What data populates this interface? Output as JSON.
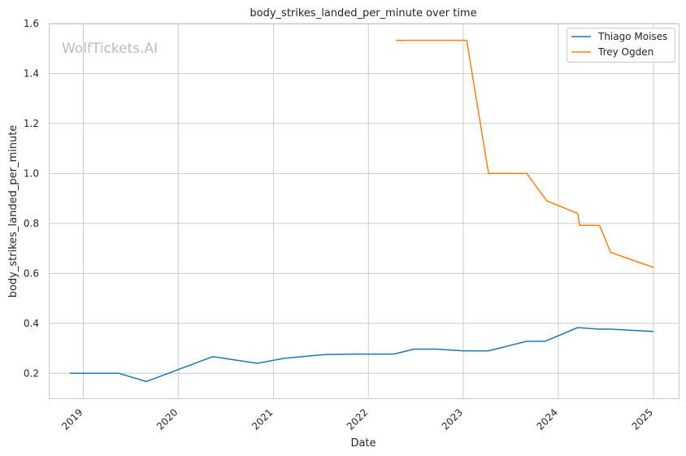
{
  "chart_data": {
    "type": "line",
    "title": "body_strikes_landed_per_minute over time",
    "xlabel": "Date",
    "ylabel": "body_strikes_landed_per_minute",
    "watermark": "WolfTickets.AI",
    "ylim": [
      0.1,
      1.6
    ],
    "xlim": [
      "2018-08-21",
      "2025-04-08"
    ],
    "y_ticks": [
      0.2,
      0.4,
      0.6,
      0.8,
      1.0,
      1.2,
      1.4,
      1.6
    ],
    "y_tick_labels": [
      "0.2",
      "0.4",
      "0.6",
      "0.8",
      "1.0",
      "1.2",
      "1.4",
      "1.6"
    ],
    "x_ticks": [
      "2019-01-01",
      "2020-01-01",
      "2021-01-01",
      "2022-01-01",
      "2023-01-01",
      "2024-01-01",
      "2025-01-01"
    ],
    "x_tick_labels": [
      "2019",
      "2020",
      "2021",
      "2022",
      "2023",
      "2024",
      "2025"
    ],
    "grid": true,
    "legend_position": "top-right",
    "series": [
      {
        "name": "Thiago Moises",
        "color": "#1f77b4",
        "points": [
          [
            "2018-11-10",
            0.2
          ],
          [
            "2019-05-18",
            0.2
          ],
          [
            "2019-08-31",
            0.167
          ],
          [
            "2020-05-13",
            0.267
          ],
          [
            "2020-10-31",
            0.24
          ],
          [
            "2021-02-13",
            0.26
          ],
          [
            "2021-07-17",
            0.275
          ],
          [
            "2021-11-13",
            0.277
          ],
          [
            "2022-04-09",
            0.277
          ],
          [
            "2022-06-25",
            0.297
          ],
          [
            "2022-09-17",
            0.297
          ],
          [
            "2023-01-01",
            0.29
          ],
          [
            "2023-04-08",
            0.29
          ],
          [
            "2023-09-02",
            0.328
          ],
          [
            "2023-11-11",
            0.328
          ],
          [
            "2024-03-16",
            0.383
          ],
          [
            "2024-06-01",
            0.377
          ],
          [
            "2024-07-20",
            0.377
          ],
          [
            "2025-01-01",
            0.367
          ]
        ]
      },
      {
        "name": "Trey Ogden",
        "color": "#ff7f0e",
        "points": [
          [
            "2022-04-16",
            1.533
          ],
          [
            "2023-01-14",
            1.533
          ],
          [
            "2023-04-08",
            1.0
          ],
          [
            "2023-09-02",
            1.0
          ],
          [
            "2023-11-18",
            0.89
          ],
          [
            "2024-03-16",
            0.84
          ],
          [
            "2024-03-23",
            0.792
          ],
          [
            "2024-06-08",
            0.792
          ],
          [
            "2024-07-20",
            0.684
          ],
          [
            "2025-01-01",
            0.624
          ]
        ]
      }
    ]
  }
}
